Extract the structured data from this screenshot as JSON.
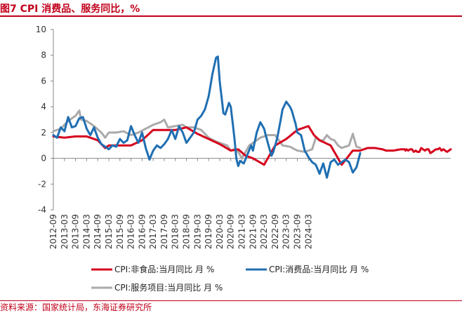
{
  "header": {
    "title": "图7  CPI 消费品、服务同比，%"
  },
  "footer": {
    "source": "资料来源：国家统计局，东海证券研究所"
  },
  "chart_data": {
    "type": "line",
    "title": "图7  CPI 消费品、服务同比，%",
    "xlabel": "",
    "ylabel": "",
    "ylim": [
      -4,
      10
    ],
    "yticks": [
      -4,
      -2,
      0,
      2,
      4,
      6,
      8,
      10
    ],
    "x_tick_labels": [
      "2012-09",
      "2013-03",
      "2013-09",
      "2014-03",
      "2014-09",
      "2015-03",
      "2015-09",
      "2016-03",
      "2016-09",
      "2017-03",
      "2017-09",
      "2018-03",
      "2018-09",
      "2019-03",
      "2019-09",
      "2020-03",
      "2020-09",
      "2021-03",
      "2021-09",
      "2022-03",
      "2022-09",
      "2023-03",
      "2023-09",
      "2024-03"
    ],
    "x_start": "2012-09",
    "x_end": "2024-06",
    "legend_position": "bottom",
    "series": [
      {
        "name": "CPI:非食品:当月同比 月 %",
        "color": "#d6001c",
        "knots": [
          [
            0,
            1.7
          ],
          [
            6,
            1.6
          ],
          [
            12,
            1.7
          ],
          [
            18,
            1.7
          ],
          [
            24,
            1.4
          ],
          [
            28,
            0.8
          ],
          [
            30,
            1.0
          ],
          [
            36,
            1.0
          ],
          [
            42,
            1.0
          ],
          [
            48,
            1.4
          ],
          [
            54,
            2.2
          ],
          [
            60,
            2.2
          ],
          [
            66,
            2.2
          ],
          [
            72,
            2.4
          ],
          [
            78,
            1.9
          ],
          [
            84,
            1.5
          ],
          [
            90,
            1.1
          ],
          [
            96,
            0.6
          ],
          [
            100,
            0.7
          ],
          [
            104,
            0.2
          ],
          [
            108,
            0.0
          ],
          [
            114,
            -0.5
          ],
          [
            120,
            1.0
          ],
          [
            126,
            1.5
          ],
          [
            132,
            2.2
          ],
          [
            138,
            2.5
          ],
          [
            141,
            1.8
          ],
          [
            144,
            1.4
          ],
          [
            150,
            1.0
          ],
          [
            156,
            -0.5
          ],
          [
            162,
            0.6
          ],
          [
            166,
            0.6
          ],
          [
            170,
            0.8
          ],
          [
            174,
            0.8
          ],
          [
            178,
            0.7
          ],
          [
            180,
            0.6
          ],
          [
            184,
            0.6
          ],
          [
            188,
            0.7
          ],
          [
            190,
            0.7
          ],
          [
            190.5,
            0.6
          ],
          [
            191,
            0.7
          ],
          [
            192,
            0.6
          ],
          [
            193,
            0.7
          ],
          [
            194,
            0.7
          ],
          [
            195,
            0.5
          ],
          [
            196,
            0.6
          ],
          [
            197,
            0.5
          ],
          [
            198,
            0.5
          ],
          [
            199,
            0.8
          ],
          [
            200,
            0.7
          ],
          [
            201,
            0.6
          ],
          [
            202,
            0.7
          ],
          [
            203,
            0.7
          ],
          [
            204,
            0.4
          ],
          [
            205,
            0.5
          ],
          [
            206,
            0.6
          ],
          [
            207,
            0.7
          ],
          [
            208,
            0.7
          ],
          [
            209,
            0.8
          ],
          [
            210,
            0.6
          ],
          [
            211,
            0.7
          ],
          [
            212,
            0.6
          ],
          [
            213,
            0.5
          ],
          [
            214,
            0.6
          ],
          [
            215,
            0.7
          ]
        ],
        "values_note": "monthly values interpolated between knots, month index 0 = 2012-09"
      },
      {
        "name": "CPI:消费品:当月同比 月 %",
        "color": "#1f6fb2",
        "knots": [
          [
            0,
            1.8
          ],
          [
            2,
            1.6
          ],
          [
            4,
            2.4
          ],
          [
            6,
            2.1
          ],
          [
            8,
            3.2
          ],
          [
            10,
            2.4
          ],
          [
            12,
            2.5
          ],
          [
            14,
            3.1
          ],
          [
            16,
            3.2
          ],
          [
            18,
            2.3
          ],
          [
            20,
            1.8
          ],
          [
            22,
            2.4
          ],
          [
            24,
            1.6
          ],
          [
            26,
            1.1
          ],
          [
            28,
            0.9
          ],
          [
            30,
            0.7
          ],
          [
            32,
            1.0
          ],
          [
            34,
            0.9
          ],
          [
            36,
            1.5
          ],
          [
            38,
            1.2
          ],
          [
            40,
            1.4
          ],
          [
            42,
            2.5
          ],
          [
            44,
            1.8
          ],
          [
            46,
            1.2
          ],
          [
            48,
            2.0
          ],
          [
            50,
            0.8
          ],
          [
            52,
            -0.1
          ],
          [
            54,
            0.6
          ],
          [
            56,
            1.0
          ],
          [
            58,
            0.8
          ],
          [
            60,
            1.1
          ],
          [
            62,
            1.5
          ],
          [
            64,
            2.2
          ],
          [
            66,
            1.5
          ],
          [
            68,
            2.5
          ],
          [
            70,
            2.0
          ],
          [
            72,
            1.2
          ],
          [
            74,
            1.6
          ],
          [
            76,
            2.0
          ],
          [
            78,
            3.0
          ],
          [
            80,
            3.3
          ],
          [
            82,
            3.8
          ],
          [
            84,
            4.8
          ],
          [
            86,
            6.5
          ],
          [
            88,
            7.8
          ],
          [
            89,
            7.9
          ],
          [
            90,
            6.0
          ],
          [
            92,
            3.5
          ],
          [
            93,
            3.4
          ],
          [
            95,
            4.3
          ],
          [
            96,
            4.0
          ],
          [
            98,
            1.5
          ],
          [
            99,
            0.0
          ],
          [
            100,
            -0.6
          ],
          [
            101,
            -0.2
          ],
          [
            103,
            -0.4
          ],
          [
            105,
            0.3
          ],
          [
            107,
            1.0
          ],
          [
            108,
            0.6
          ],
          [
            110,
            2.0
          ],
          [
            112,
            2.8
          ],
          [
            114,
            2.3
          ],
          [
            116,
            1.2
          ],
          [
            118,
            0.2
          ],
          [
            119,
            0.5
          ],
          [
            121,
            1.5
          ],
          [
            123,
            3.0
          ],
          [
            124,
            3.8
          ],
          [
            126,
            4.4
          ],
          [
            128,
            4.0
          ],
          [
            129,
            3.7
          ],
          [
            131,
            2.7
          ],
          [
            132,
            2.0
          ],
          [
            134,
            1.8
          ],
          [
            136,
            0.6
          ],
          [
            138,
            0.1
          ],
          [
            140,
            -0.3
          ],
          [
            142,
            -0.5
          ],
          [
            144,
            -1.2
          ],
          [
            146,
            -0.4
          ],
          [
            148,
            -1.5
          ],
          [
            150,
            -0.3
          ],
          [
            152,
            -0.1
          ],
          [
            154,
            -0.5
          ],
          [
            156,
            -0.3
          ],
          [
            158,
            -0.1
          ],
          [
            160,
            -0.3
          ],
          [
            162,
            -1.1
          ],
          [
            164,
            -0.7
          ],
          [
            166,
            0.4
          ]
        ],
        "values_note": "monthly values interpolated between knots, month index 0 = 2012-09"
      },
      {
        "name": "CPI:服务项目:当月同比 月 %",
        "color": "#aaaaaa",
        "knots": [
          [
            0,
            2.1
          ],
          [
            4,
            2.3
          ],
          [
            8,
            2.9
          ],
          [
            12,
            3.3
          ],
          [
            14,
            3.7
          ],
          [
            15,
            3.0
          ],
          [
            18,
            2.9
          ],
          [
            22,
            2.5
          ],
          [
            26,
            2.0
          ],
          [
            28,
            1.6
          ],
          [
            30,
            2.0
          ],
          [
            34,
            2.0
          ],
          [
            38,
            2.1
          ],
          [
            42,
            1.8
          ],
          [
            46,
            2.0
          ],
          [
            50,
            2.3
          ],
          [
            54,
            2.6
          ],
          [
            58,
            2.8
          ],
          [
            60,
            3.0
          ],
          [
            62,
            2.4
          ],
          [
            66,
            2.5
          ],
          [
            70,
            2.6
          ],
          [
            72,
            2.4
          ],
          [
            76,
            2.4
          ],
          [
            80,
            2.2
          ],
          [
            84,
            1.6
          ],
          [
            88,
            1.3
          ],
          [
            92,
            1.1
          ],
          [
            94,
            1.0
          ],
          [
            96,
            0.6
          ],
          [
            98,
            0.7
          ],
          [
            100,
            0.5
          ],
          [
            102,
            0.0
          ],
          [
            104,
            0.5
          ],
          [
            106,
            1.0
          ],
          [
            108,
            1.2
          ],
          [
            112,
            1.6
          ],
          [
            116,
            1.8
          ],
          [
            120,
            1.8
          ],
          [
            124,
            1.0
          ],
          [
            128,
            0.9
          ],
          [
            132,
            0.6
          ],
          [
            136,
            0.5
          ],
          [
            140,
            0.7
          ],
          [
            142,
            1.6
          ],
          [
            144,
            1.4
          ],
          [
            146,
            1.4
          ],
          [
            148,
            1.8
          ],
          [
            150,
            1.5
          ],
          [
            152,
            1.4
          ],
          [
            154,
            1.0
          ],
          [
            156,
            0.8
          ],
          [
            158,
            0.9
          ],
          [
            160,
            1.0
          ],
          [
            162,
            1.9
          ],
          [
            164,
            0.9
          ],
          [
            166,
            0.8
          ]
        ],
        "values_note": "monthly values interpolated between knots, month index 0 = 2012-09"
      }
    ]
  }
}
